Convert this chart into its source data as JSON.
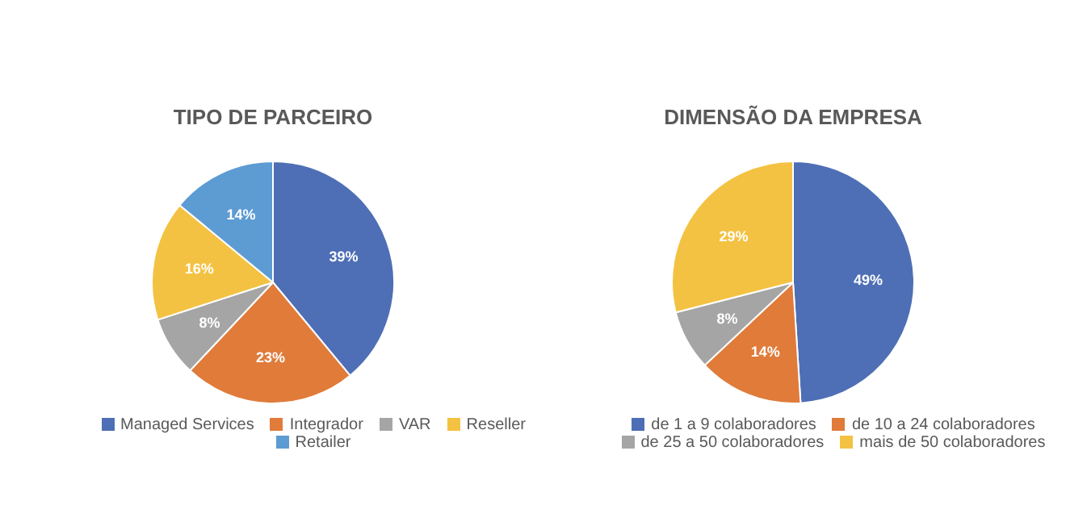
{
  "chart_data": [
    {
      "type": "pie",
      "title": "TIPO DE PARCEIRO",
      "categories": [
        "Managed Services",
        "Integrador",
        "VAR",
        "Reseller",
        "Retailer"
      ],
      "values": [
        39,
        23,
        8,
        16,
        14
      ],
      "colors": [
        "#4e6fb5",
        "#e07b3a",
        "#a5a5a5",
        "#f4c242",
        "#5d9bd3"
      ],
      "value_labels": [
        "39%",
        "23%",
        "8%",
        "16%",
        "14%"
      ],
      "legend": "bottom"
    },
    {
      "type": "pie",
      "title": "DIMENSÃO DA EMPRESA",
      "categories": [
        "de 1 a 9 colaboradores",
        "de 10 a 24 colaboradores",
        "de 25 a 50 colaboradores",
        "mais de 50 colaboradores"
      ],
      "values": [
        49,
        14,
        8,
        29
      ],
      "colors": [
        "#4e6fb5",
        "#e07b3a",
        "#a5a5a5",
        "#f4c242"
      ],
      "value_labels": [
        "49%",
        "14%",
        "8%",
        "29%"
      ],
      "legend": "bottom"
    }
  ]
}
